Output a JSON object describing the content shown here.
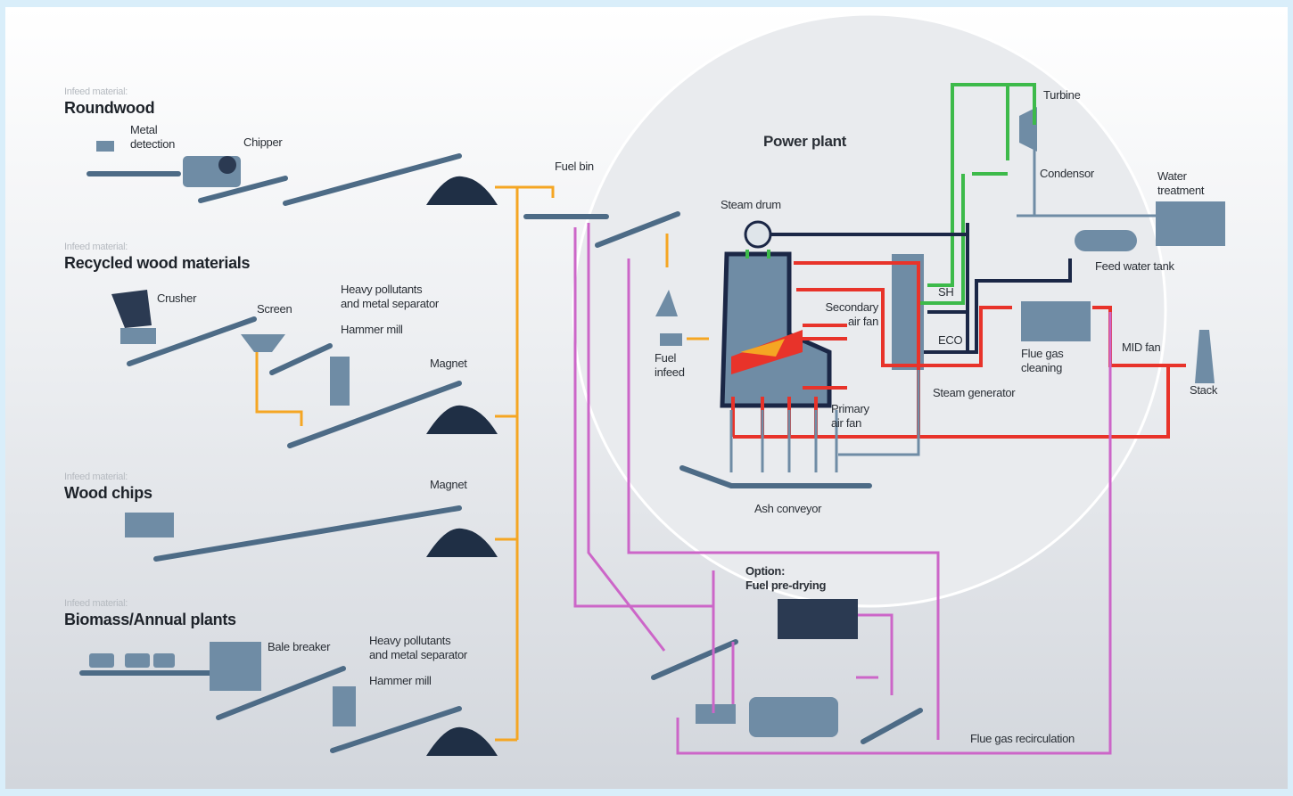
{
  "sections": [
    {
      "label": "Infeed material:",
      "title": "Roundwood"
    },
    {
      "label": "Infeed material:",
      "title": "Recycled wood materials"
    },
    {
      "label": "Infeed material:",
      "title": "Wood chips"
    },
    {
      "label": "Infeed material:",
      "title": "Biomass/Annual plants"
    }
  ],
  "labels": {
    "metal_detection": [
      "Metal",
      "detection"
    ],
    "chipper": [
      "Chipper"
    ],
    "crusher": [
      "Crusher"
    ],
    "screen": [
      "Screen"
    ],
    "separator_1": [
      "Heavy pollutants",
      "and metal separator"
    ],
    "hammer_mill_1": [
      "Hammer mill"
    ],
    "magnet_1": [
      "Magnet"
    ],
    "magnet_2": [
      "Magnet"
    ],
    "bale_breaker": [
      "Bale breaker"
    ],
    "separator_2": [
      "Heavy pollutants",
      "and metal separator"
    ],
    "hammer_mill_2": [
      "Hammer mill"
    ],
    "fuel_bin": [
      "Fuel bin"
    ],
    "power_plant": [
      "Power plant"
    ],
    "steam_drum": [
      "Steam drum"
    ],
    "turbine": [
      "Turbine"
    ],
    "condensor": [
      "Condensor"
    ],
    "water_treatment": [
      "Water",
      "treatment"
    ],
    "feed_water_tank": [
      "Feed water tank"
    ],
    "sh": [
      "SH"
    ],
    "eco": [
      "ECO"
    ],
    "secondary_air_fan": [
      "Secondary",
      "air fan"
    ],
    "fuel_infeed": [
      "Fuel",
      "infeed"
    ],
    "primary_air_fan": [
      "Primary",
      "air fan"
    ],
    "steam_generator": [
      "Steam generator"
    ],
    "flue_gas_cleaning": [
      "Flue gas",
      "cleaning"
    ],
    "mid_fan": [
      "MID fan"
    ],
    "stack": [
      "Stack"
    ],
    "ash_conveyor": [
      "Ash conveyor"
    ],
    "option": [
      "Option:",
      "Fuel pre-drying"
    ],
    "flue_gas_recirculation": [
      "Flue gas recirculation"
    ]
  }
}
